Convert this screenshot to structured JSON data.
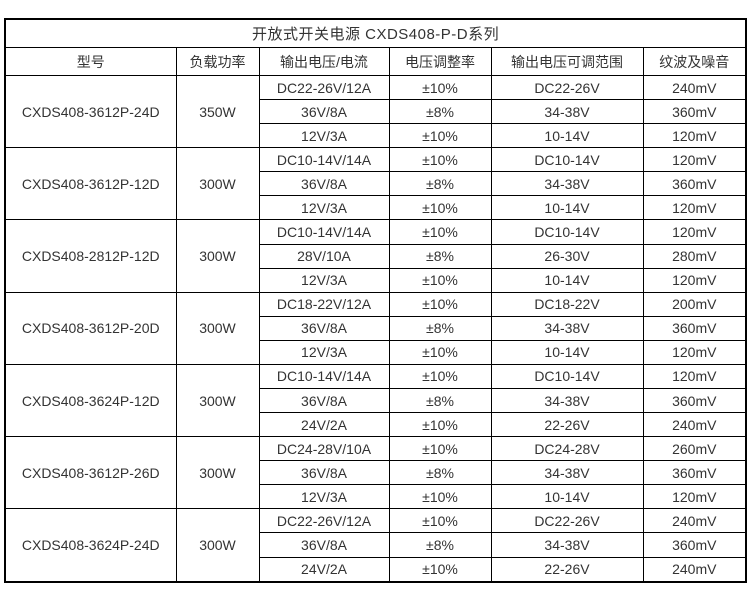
{
  "table": {
    "title": "开放式开关电源 CXDS408-P-D系列",
    "headers": [
      "型号",
      "负载功率",
      "输出电压/电流",
      "电压调整率",
      "输出电压可调范围",
      "纹波及噪音"
    ],
    "groups": [
      {
        "model": "CXDS408-3612P-24D",
        "power": "350W",
        "rows": [
          [
            "DC22-26V/12A",
            "±10%",
            "DC22-26V",
            "240mV"
          ],
          [
            "36V/8A",
            "±8%",
            "34-38V",
            "360mV"
          ],
          [
            "12V/3A",
            "±10%",
            "10-14V",
            "120mV"
          ]
        ]
      },
      {
        "model": "CXDS408-3612P-12D",
        "power": "300W",
        "rows": [
          [
            "DC10-14V/14A",
            "±10%",
            "DC10-14V",
            "120mV"
          ],
          [
            "36V/8A",
            "±8%",
            "34-38V",
            "360mV"
          ],
          [
            "12V/3A",
            "±10%",
            "10-14V",
            "120mV"
          ]
        ]
      },
      {
        "model": "CXDS408-2812P-12D",
        "power": "300W",
        "rows": [
          [
            "DC10-14V/14A",
            "±10%",
            "DC10-14V",
            "120mV"
          ],
          [
            "28V/10A",
            "±8%",
            "26-30V",
            "280mV"
          ],
          [
            "12V/3A",
            "±10%",
            "10-14V",
            "120mV"
          ]
        ]
      },
      {
        "model": "CXDS408-3612P-20D",
        "power": "300W",
        "rows": [
          [
            "DC18-22V/12A",
            "±10%",
            "DC18-22V",
            "200mV"
          ],
          [
            "36V/8A",
            "±8%",
            "34-38V",
            "360mV"
          ],
          [
            "12V/3A",
            "±10%",
            "10-14V",
            "120mV"
          ]
        ]
      },
      {
        "model": "CXDS408-3624P-12D",
        "power": "300W",
        "rows": [
          [
            "DC10-14V/14A",
            "±10%",
            "DC10-14V",
            "120mV"
          ],
          [
            "36V/8A",
            "±8%",
            "34-38V",
            "360mV"
          ],
          [
            "24V/2A",
            "±10%",
            "22-26V",
            "240mV"
          ]
        ]
      },
      {
        "model": "CXDS408-3612P-26D",
        "power": "300W",
        "rows": [
          [
            "DC24-28V/10A",
            "±10%",
            "DC24-28V",
            "260mV"
          ],
          [
            "36V/8A",
            "±8%",
            "34-38V",
            "360mV"
          ],
          [
            "12V/3A",
            "±10%",
            "10-14V",
            "120mV"
          ]
        ]
      },
      {
        "model": "CXDS408-3624P-24D",
        "power": "300W",
        "rows": [
          [
            "DC22-26V/12A",
            "±10%",
            "DC22-26V",
            "240mV"
          ],
          [
            "36V/8A",
            "±8%",
            "34-38V",
            "360mV"
          ],
          [
            "24V/2A",
            "±10%",
            "22-26V",
            "240mV"
          ]
        ]
      }
    ]
  }
}
